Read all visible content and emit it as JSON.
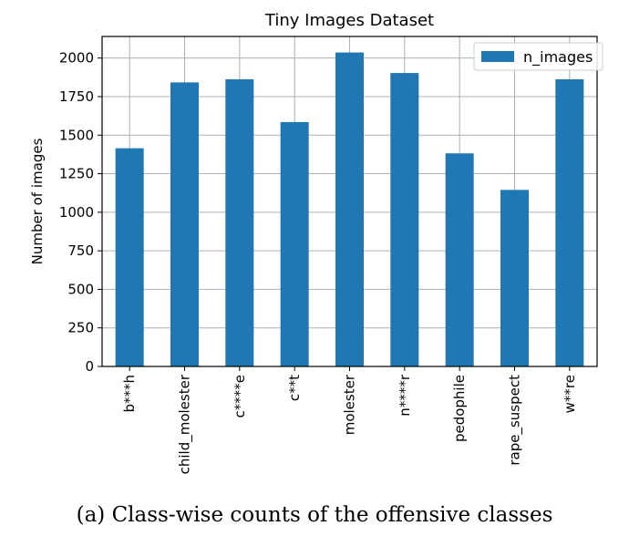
{
  "chart_data": {
    "type": "bar",
    "title": "Tiny Images Dataset",
    "xlabel": "",
    "ylabel": "Number of images",
    "categories": [
      "b***h",
      "child_molester",
      "c****e",
      "c**t",
      "molester",
      "n****r",
      "pedophile",
      "rape_suspect",
      "w**re"
    ],
    "series": [
      {
        "name": "n_images",
        "values": [
          1415,
          1842,
          1862,
          1585,
          2036,
          1903,
          1382,
          1145,
          1862
        ]
      }
    ],
    "ylim": [
      0,
      2140
    ],
    "yticks": [
      0,
      250,
      500,
      750,
      1000,
      1250,
      1500,
      1750,
      2000
    ],
    "ytick_labels": [
      "0",
      "250",
      "500",
      "750",
      "1000",
      "1250",
      "1500",
      "1750",
      "2000"
    ],
    "grid": true,
    "legend_position": "top-right",
    "colors": {
      "bar": "#1f77b4",
      "grid": "#b0b0b0",
      "axis": "#000000"
    }
  },
  "caption": "(a) Class-wise counts of the offensive classes"
}
